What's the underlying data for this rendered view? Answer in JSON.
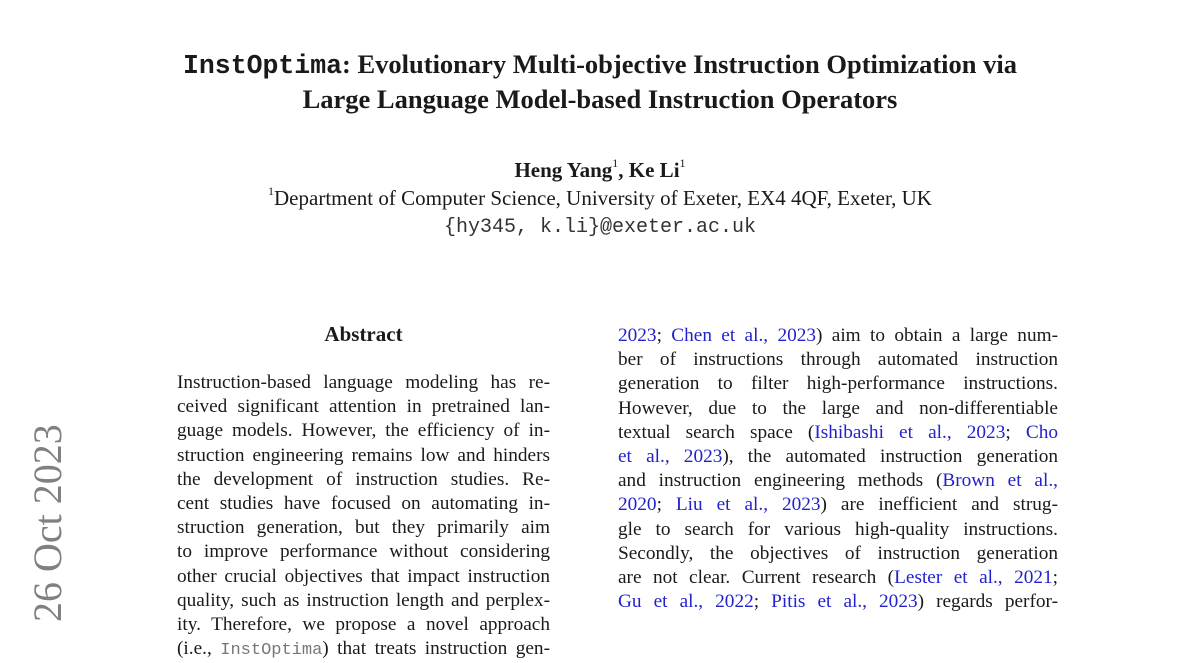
{
  "title": {
    "name_mono": "InstOptima",
    "line1_rest": ": Evolutionary Multi-objective Instruction Optimization via",
    "line2": "Large Language Model-based Instruction Operators"
  },
  "authors": [
    {
      "name": "Heng Yang",
      "aff": "1"
    },
    {
      "name": "Ke Li",
      "aff": "1"
    }
  ],
  "affiliation": {
    "mark": "1",
    "text": "Department of Computer Science, University of Exeter, EX4 4QF, Exeter, UK"
  },
  "email": "{hy345, k.li}@exeter.ac.uk",
  "arxiv_stamp": "26 Oct 2023",
  "abstract": {
    "heading": "Abstract",
    "lines": [
      [
        {
          "t": "Instruction-based language modeling has re-"
        }
      ],
      [
        {
          "t": "ceived significant attention in pretrained lan-"
        }
      ],
      [
        {
          "t": "guage models. However, the efficiency of in-"
        }
      ],
      [
        {
          "t": "struction engineering remains low and hinders"
        }
      ],
      [
        {
          "t": "the development of instruction studies. Re-"
        }
      ],
      [
        {
          "t": "cent studies have focused on automating in-"
        }
      ],
      [
        {
          "t": "struction generation, but they primarily aim"
        }
      ],
      [
        {
          "t": "to improve performance without considering"
        }
      ],
      [
        {
          "t": "other crucial objectives that impact instruction"
        }
      ],
      [
        {
          "t": "quality, such as instruction length and perplex-"
        }
      ],
      [
        {
          "t": "ity. Therefore, we propose a novel approach"
        }
      ],
      [
        {
          "t": "(i.e., "
        },
        {
          "t": "InstOptima",
          "mono": true
        },
        {
          "t": ") that treats instruction gen-"
        }
      ]
    ]
  },
  "right_column": {
    "lines": [
      [
        {
          "t": "2023",
          "link": true
        },
        {
          "t": "; "
        },
        {
          "t": "Chen et al., 2023",
          "link": true
        },
        {
          "t": ") aim to obtain a large num-"
        }
      ],
      [
        {
          "t": "ber of instructions through automated instruction"
        }
      ],
      [
        {
          "t": "generation to filter high-performance instructions."
        }
      ],
      [
        {
          "t": "However, due to the large and non-differentiable"
        }
      ],
      [
        {
          "t": "textual search space ("
        },
        {
          "t": "Ishibashi et al., 2023",
          "link": true
        },
        {
          "t": "; "
        },
        {
          "t": "Cho",
          "link": true
        }
      ],
      [
        {
          "t": "et al., 2023",
          "link": true
        },
        {
          "t": "), the automated instruction generation"
        }
      ],
      [
        {
          "t": "and instruction engineering methods ("
        },
        {
          "t": "Brown et al.,",
          "link": true
        }
      ],
      [
        {
          "t": "2020",
          "link": true
        },
        {
          "t": "; "
        },
        {
          "t": "Liu et al., 2023",
          "link": true
        },
        {
          "t": ") are inefficient and strug-"
        }
      ],
      [
        {
          "t": "gle to search for various high-quality instructions."
        }
      ],
      [
        {
          "t": "Secondly, the objectives of instruction generation"
        }
      ],
      [
        {
          "t": "are not clear. Current research ("
        },
        {
          "t": "Lester et al., 2021",
          "link": true
        },
        {
          "t": ";"
        }
      ],
      [
        {
          "t": "Gu et al., 2022",
          "link": true
        },
        {
          "t": "; "
        },
        {
          "t": "Pitis et al., 2023",
          "link": true
        },
        {
          "t": ") regards perfor-"
        }
      ]
    ]
  },
  "colors": {
    "link": "#2222cc",
    "stamp": "#808080"
  }
}
